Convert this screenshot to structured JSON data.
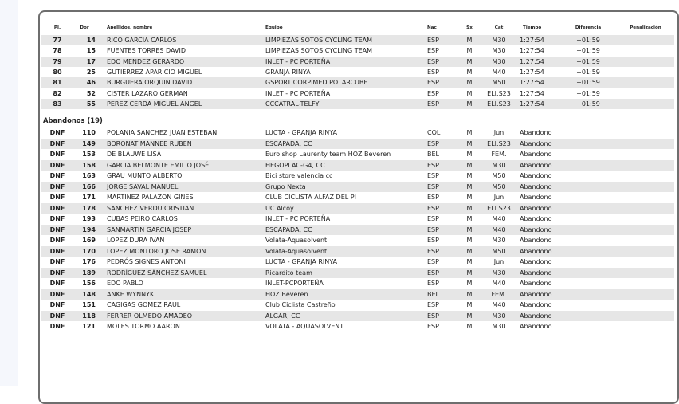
{
  "columns": {
    "pl": "Pl.",
    "dor": "Dor",
    "name": "Apellidos, nombre",
    "team": "Equipo",
    "nac": "Nac",
    "sx": "Sx",
    "cat": "Cat",
    "time": "Tiempo",
    "diff": "Diferencia",
    "pen": "Penalización"
  },
  "finishers": [
    {
      "pl": "77",
      "dor": "14",
      "name": "RICO GARCIA CARLOS",
      "team": "LIMPIEZAS SOTOS CYCLING TEAM",
      "nac": "ESP",
      "sx": "M",
      "cat": "M30",
      "time": "1:27:54",
      "diff": "+01:59"
    },
    {
      "pl": "78",
      "dor": "15",
      "name": "FUENTES TORRES DAVID",
      "team": "LIMPIEZAS SOTOS CYCLING TEAM",
      "nac": "ESP",
      "sx": "M",
      "cat": "M30",
      "time": "1:27:54",
      "diff": "+01:59"
    },
    {
      "pl": "79",
      "dor": "17",
      "name": "EDO MENDEZ GERARDO",
      "team": "INLET - PC PORTEÑA",
      "nac": "ESP",
      "sx": "M",
      "cat": "M30",
      "time": "1:27:54",
      "diff": "+01:59"
    },
    {
      "pl": "80",
      "dor": "25",
      "name": "GUTIERREZ APARICIO MIGUEL",
      "team": "GRANJA RINYA",
      "nac": "ESP",
      "sx": "M",
      "cat": "M40",
      "time": "1:27:54",
      "diff": "+01:59"
    },
    {
      "pl": "81",
      "dor": "46",
      "name": "BURGUERA ORQUIN DAVID",
      "team": "GSPORT CORPIMED POLARCUBE",
      "nac": "ESP",
      "sx": "M",
      "cat": "M50",
      "time": "1:27:54",
      "diff": "+01:59"
    },
    {
      "pl": "82",
      "dor": "52",
      "name": "CISTER LAZARO GERMAN",
      "team": "INLET - PC PORTEÑA",
      "nac": "ESP",
      "sx": "M",
      "cat": "ELI.S23",
      "time": "1:27:54",
      "diff": "+01:59"
    },
    {
      "pl": "83",
      "dor": "55",
      "name": "PEREZ CERDA MIGUEL ANGEL",
      "team": "CCCATRAL-TELFY",
      "nac": "ESP",
      "sx": "M",
      "cat": "ELI.S23",
      "time": "1:27:54",
      "diff": "+01:59"
    }
  ],
  "dnf_section": "Abandonos (19)",
  "dnf": [
    {
      "pl": "DNF",
      "dor": "110",
      "name": "POLANIA SANCHEZ JUAN ESTEBAN",
      "team": "LUCTA - GRANJA RINYA",
      "nac": "COL",
      "sx": "M",
      "cat": "Jun",
      "time": "Abandono"
    },
    {
      "pl": "DNF",
      "dor": "149",
      "name": "BORONAT MANNEE RUBEN",
      "team": "ESCAPADA, CC",
      "nac": "ESP",
      "sx": "M",
      "cat": "ELI.S23",
      "time": "Abandono"
    },
    {
      "pl": "DNF",
      "dor": "153",
      "name": "DE BLAUWE LISA",
      "team": "Euro shop Laurenty team HOZ Beveren",
      "nac": "BEL",
      "sx": "M",
      "cat": "FEM.",
      "time": "Abandono"
    },
    {
      "pl": "DNF",
      "dor": "158",
      "name": "GARCIA BELMONTE EMILIO JOSÉ",
      "team": "HEGOPLAC-G4, CC",
      "nac": "ESP",
      "sx": "M",
      "cat": "M30",
      "time": "Abandono"
    },
    {
      "pl": "DNF",
      "dor": "163",
      "name": "GRAU MUNTO ALBERTO",
      "team": "Bici store valencia cc",
      "nac": "ESP",
      "sx": "M",
      "cat": "M50",
      "time": "Abandono"
    },
    {
      "pl": "DNF",
      "dor": "166",
      "name": "JORGE SAVAL MANUEL",
      "team": "Grupo Nexta",
      "nac": "ESP",
      "sx": "M",
      "cat": "M50",
      "time": "Abandono"
    },
    {
      "pl": "DNF",
      "dor": "171",
      "name": "MARTINEZ PALAZON GINES",
      "team": "CLUB CICLISTA ALFAZ DEL PI",
      "nac": "ESP",
      "sx": "M",
      "cat": "Jun",
      "time": "Abandono"
    },
    {
      "pl": "DNF",
      "dor": "178",
      "name": "SANCHEZ VERDU CRISTIAN",
      "team": "UC Alcoy",
      "nac": "ESP",
      "sx": "M",
      "cat": "ELI.S23",
      "time": "Abandono"
    },
    {
      "pl": "DNF",
      "dor": "193",
      "name": "CUBAS PEIRO CARLOS",
      "team": "INLET - PC PORTEÑA",
      "nac": "ESP",
      "sx": "M",
      "cat": "M40",
      "time": "Abandono"
    },
    {
      "pl": "DNF",
      "dor": "194",
      "name": "SANMARTIN GARCIA JOSEP",
      "team": "ESCAPADA, CC",
      "nac": "ESP",
      "sx": "M",
      "cat": "M40",
      "time": "Abandono"
    },
    {
      "pl": "DNF",
      "dor": "169",
      "name": "LOPEZ DURA IVAN",
      "team": "Volata-Aquasolvent",
      "nac": "ESP",
      "sx": "M",
      "cat": "M30",
      "time": "Abandono"
    },
    {
      "pl": "DNF",
      "dor": "170",
      "name": "LOPEZ MONTORO JOSE RAMON",
      "team": "Volata-Aquasolvent",
      "nac": "ESP",
      "sx": "M",
      "cat": "M50",
      "time": "Abandono"
    },
    {
      "pl": "DNF",
      "dor": "176",
      "name": "PEDRÓS SIGNES ANTONI",
      "team": "LUCTA - GRANJA RINYA",
      "nac": "ESP",
      "sx": "M",
      "cat": "Jun",
      "time": "Abandono"
    },
    {
      "pl": "DNF",
      "dor": "189",
      "name": "RODRÍGUEZ SÁNCHEZ SAMUEL",
      "team": "Ricardito team",
      "nac": "ESP",
      "sx": "M",
      "cat": "M30",
      "time": "Abandono"
    },
    {
      "pl": "DNF",
      "dor": "156",
      "name": "EDO PABLO",
      "team": "INLET-PCPORTEÑA",
      "nac": "ESP",
      "sx": "M",
      "cat": "M40",
      "time": "Abandono"
    },
    {
      "pl": "DNF",
      "dor": "148",
      "name": "ANKE WYNNYK",
      "team": "HOZ Beveren",
      "nac": "BEL",
      "sx": "M",
      "cat": "FEM.",
      "time": "Abandono"
    },
    {
      "pl": "DNF",
      "dor": "151",
      "name": "CAGIGAS GOMEZ RAUL",
      "team": "Club Ciclista Castreño",
      "nac": "ESP",
      "sx": "M",
      "cat": "M40",
      "time": "Abandono"
    },
    {
      "pl": "DNF",
      "dor": "118",
      "name": "FERRER OLMEDO AMADEO",
      "team": "ALGAR, CC",
      "nac": "ESP",
      "sx": "M",
      "cat": "M30",
      "time": "Abandono"
    },
    {
      "pl": "DNF",
      "dor": "121",
      "name": "MOLES TORMO AARON",
      "team": "VOLATA - AQUASOLVENT",
      "nac": "ESP",
      "sx": "M",
      "cat": "M30",
      "time": "Abandono"
    }
  ]
}
